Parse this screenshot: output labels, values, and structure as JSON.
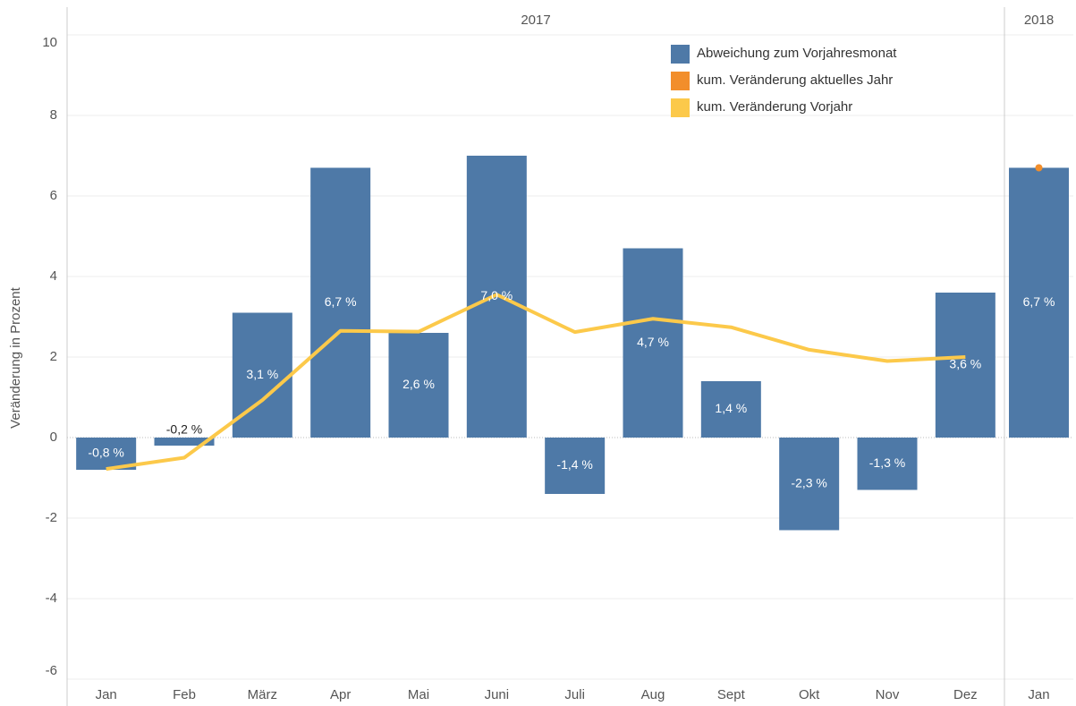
{
  "chart_data": {
    "type": "combo",
    "y_label": "Veränderung in Prozent",
    "panels": [
      {
        "title": "2017",
        "categories": [
          "Jan",
          "Feb",
          "März",
          "Apr",
          "Mai",
          "Juni",
          "Juli",
          "Aug",
          "Sept",
          "Okt",
          "Nov",
          "Dez"
        ]
      },
      {
        "title": "2018",
        "categories": [
          "Jan"
        ]
      }
    ],
    "series": [
      {
        "name": "Abweichung zum Vorjahresmonat",
        "mark": "bar",
        "color": "#4e79a7",
        "values": [
          -0.8,
          -0.2,
          3.1,
          6.7,
          2.6,
          7.0,
          -1.4,
          4.7,
          1.4,
          -2.3,
          -1.3,
          3.6,
          6.7
        ],
        "value_labels": [
          "-0,8 %",
          "-0,2 %",
          "3,1 %",
          "6,7 %",
          "2,6 %",
          "7,0 %",
          "-1,4 %",
          "4,7 %",
          "1,4 %",
          "-2,3 %",
          "-1,3 %",
          "3,6 %",
          "6,7 %"
        ]
      },
      {
        "name": "kum. Veränderung aktuelles Jahr",
        "mark": "dot",
        "color": "#f28e2b",
        "values": [
          null,
          null,
          null,
          null,
          null,
          null,
          null,
          null,
          null,
          null,
          null,
          null,
          6.7
        ]
      },
      {
        "name": "kum. Veränderung Vorjahr",
        "mark": "line",
        "color": "#fcc94a",
        "values": [
          -0.78,
          -0.5,
          0.93,
          2.65,
          2.63,
          3.55,
          2.62,
          2.95,
          2.74,
          2.18,
          1.9,
          2.0,
          null
        ]
      }
    ],
    "ylim": [
      -6,
      10
    ],
    "yticks": [
      -6,
      -4,
      -2,
      0,
      2,
      4,
      6,
      8,
      10
    ],
    "grid": true
  }
}
